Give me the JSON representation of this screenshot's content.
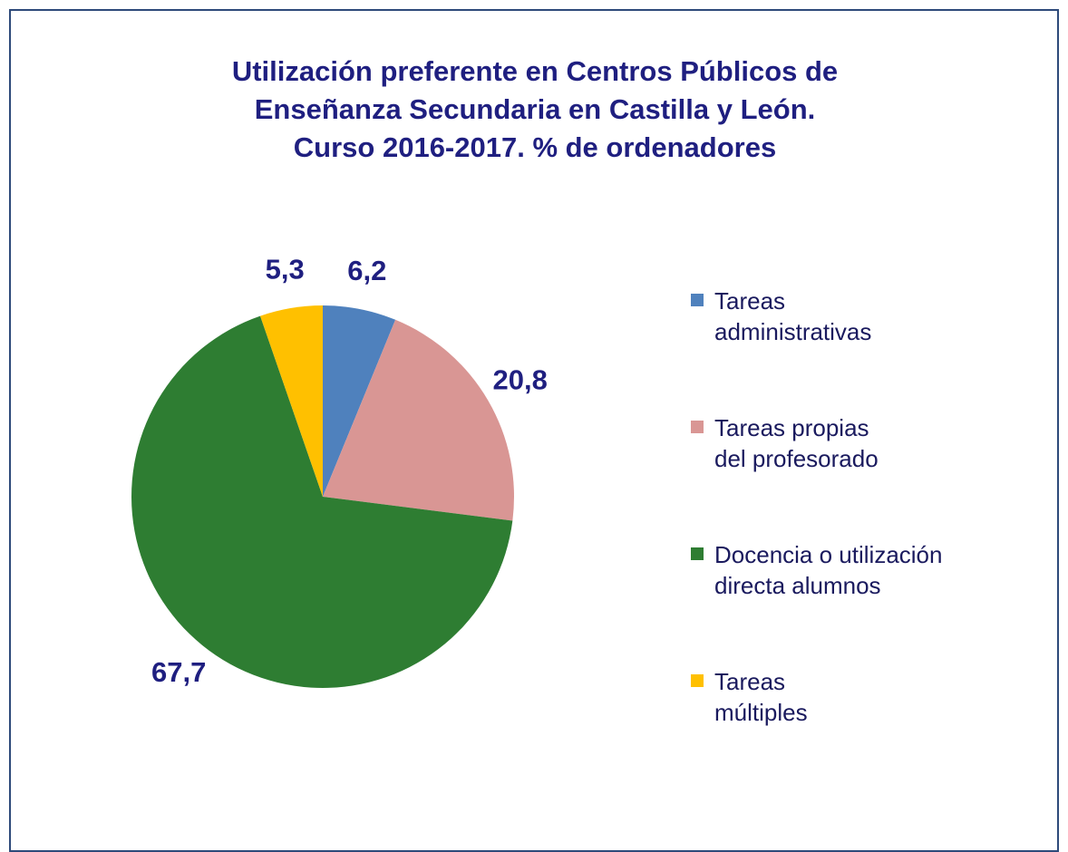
{
  "chart_data": {
    "type": "pie",
    "title": "Utilización  preferente en Centros Públicos de\nEnseñanza Secundaria en Castilla y León.\nCurso 2016-2017. % de ordenadores",
    "categories": [
      "Tareas\nadministrativas",
      "Tareas propias\ndel profesorado",
      "Docencia o utilización\ndirecta alumnos",
      "Tareas\nmúltiples"
    ],
    "values": [
      6.2,
      20.8,
      67.7,
      5.3
    ],
    "value_labels": [
      "6,2",
      "20,8",
      "67,7",
      "5,3"
    ],
    "colors": [
      "#4f81bd",
      "#d99694",
      "#2e7d32",
      "#ffc000"
    ],
    "legend": "right"
  }
}
